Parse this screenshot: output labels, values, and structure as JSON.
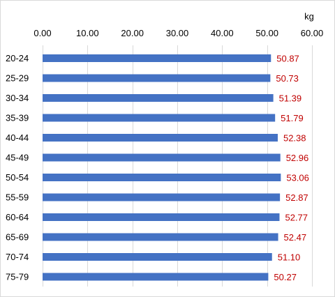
{
  "chart_data": {
    "type": "bar",
    "orientation": "horizontal",
    "unit_label": "kg",
    "categories": [
      "20-24",
      "25-29",
      "30-34",
      "35-39",
      "40-44",
      "45-49",
      "50-54",
      "55-59",
      "60-64",
      "65-69",
      "70-74",
      "75-79"
    ],
    "values": [
      50.87,
      50.73,
      51.39,
      51.79,
      52.38,
      52.96,
      53.06,
      52.87,
      52.77,
      52.47,
      51.1,
      50.27
    ],
    "value_labels": [
      "50.87",
      "50.73",
      "51.39",
      "51.79",
      "52.38",
      "52.96",
      "53.06",
      "52.87",
      "52.77",
      "52.47",
      "51.10",
      "50.27"
    ],
    "x_ticks": [
      "0.00",
      "10.00",
      "20.00",
      "30.00",
      "40.00",
      "50.00",
      "60.00"
    ],
    "xlim": [
      0,
      60
    ],
    "x_axis_position": "top",
    "grid": true,
    "legend": "none",
    "colors": {
      "bar": "#4472C4",
      "data_label": "#C00000",
      "grid": "#d9d9d9"
    }
  }
}
